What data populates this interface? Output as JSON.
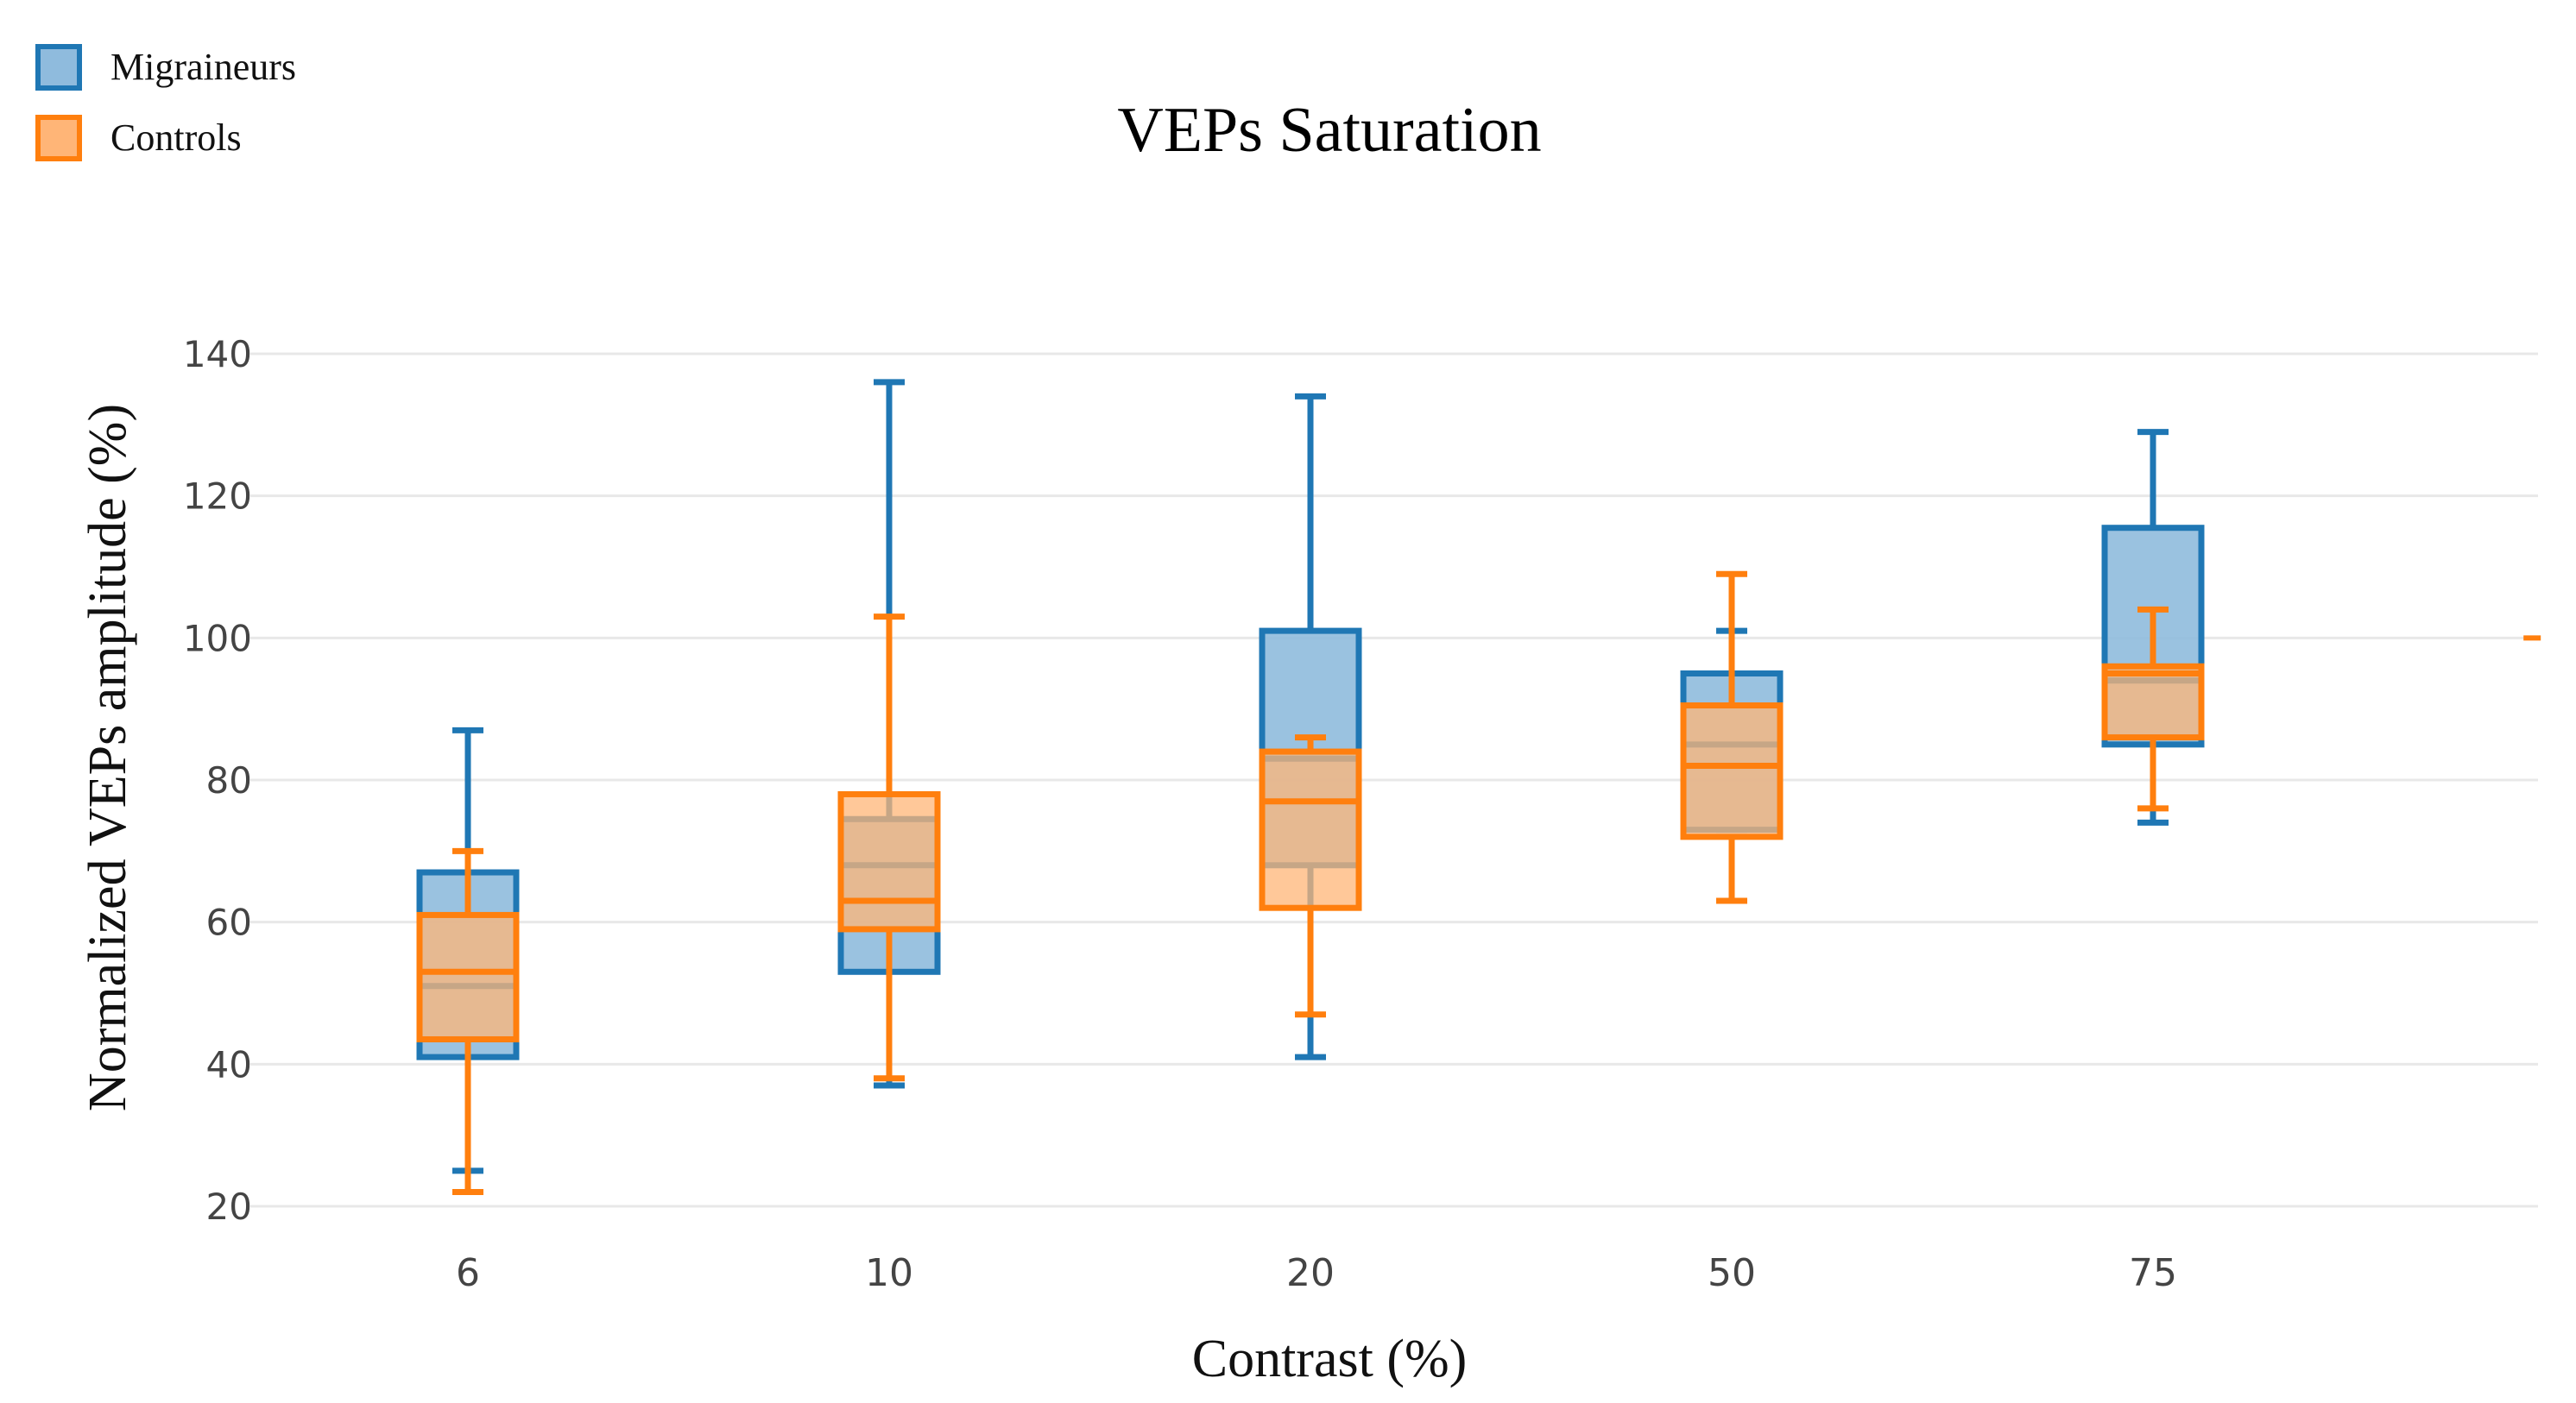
{
  "chart_data": {
    "type": "box",
    "title": "VEPs Saturation",
    "xlabel": "Contrast (%)",
    "ylabel": "Normalized VEPs amplitude (%)",
    "categories": [
      "6",
      "10",
      "20",
      "50",
      "75"
    ],
    "ylim": [
      20,
      140
    ],
    "yticks": [
      20,
      40,
      60,
      80,
      100,
      120,
      140
    ],
    "grid": true,
    "legend_position": "top-left",
    "series": [
      {
        "name": "Migraineurs",
        "color": "#1f77b4",
        "fill": "#8fbbdd",
        "boxes": [
          {
            "min": 25,
            "q1": 41,
            "median": 51,
            "q3": 67,
            "max": 87
          },
          {
            "min": 37,
            "q1": 53,
            "median": 68,
            "q3": 74.5,
            "max": 136
          },
          {
            "min": 41,
            "q1": 68,
            "median": 83,
            "q3": 101,
            "max": 134
          },
          {
            "min": 73,
            "q1": 73,
            "median": 85,
            "q3": 95,
            "max": 101
          },
          {
            "min": 74,
            "q1": 85,
            "median": 94,
            "q3": 115.5,
            "max": 129
          }
        ],
        "outliers": []
      },
      {
        "name": "Controls",
        "color": "#ff7f0e",
        "fill": "#ffb577",
        "boxes": [
          {
            "min": 22,
            "q1": 43.5,
            "median": 53,
            "q3": 61,
            "max": 70
          },
          {
            "min": 38,
            "q1": 59,
            "median": 63,
            "q3": 78,
            "max": 103
          },
          {
            "min": 47,
            "q1": 62,
            "median": 77,
            "q3": 84,
            "max": 86
          },
          {
            "min": 63,
            "q1": 72,
            "median": 82,
            "q3": 90.5,
            "max": 109
          },
          {
            "min": 76,
            "q1": 86,
            "median": 95,
            "q3": 96,
            "max": 104
          }
        ],
        "outliers": [
          {
            "x_after": "75",
            "y": 100
          }
        ]
      }
    ]
  }
}
